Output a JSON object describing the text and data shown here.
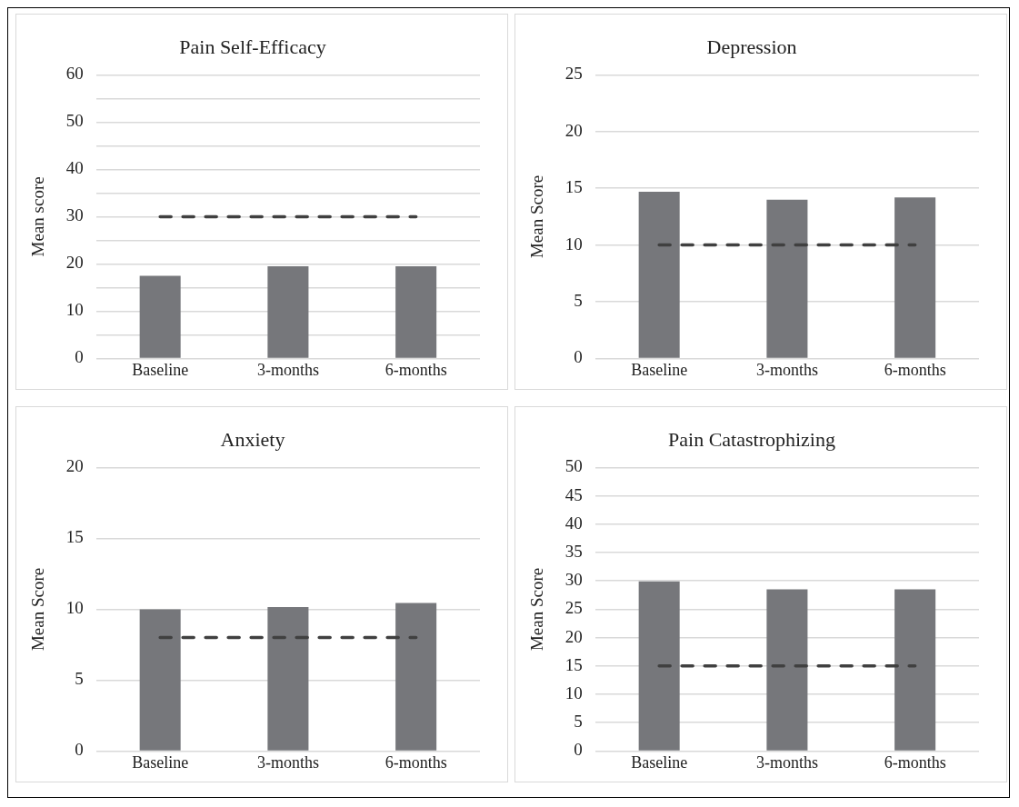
{
  "chart_data": [
    {
      "type": "bar",
      "title": "Pain Self-Efficacy",
      "ylabel": "Mean score",
      "categories": [
        "Baseline",
        "3-months",
        "6-months"
      ],
      "values": [
        17.5,
        19.5,
        19.5
      ],
      "color": "#76777b",
      "ylim": [
        0,
        60
      ],
      "yticks": [
        0,
        {
          "value": 5,
          "label": null
        },
        10,
        {
          "value": 15,
          "label": null
        },
        20,
        {
          "value": 25,
          "label": null
        },
        30,
        {
          "value": 35,
          "label": null
        },
        40,
        {
          "value": 45,
          "label": null
        },
        50,
        {
          "value": 55,
          "label": null
        },
        60
      ],
      "grid": "y",
      "legend": false,
      "ref_lines": [
        {
          "axis": "y",
          "value": 30,
          "color": "#404040",
          "line_style": "dashed"
        }
      ]
    },
    {
      "type": "bar",
      "title": "Depression",
      "ylabel": "Mean Score",
      "categories": [
        "Baseline",
        "3-months",
        "6-months"
      ],
      "values": [
        14.7,
        14.0,
        14.2
      ],
      "color": "#76777b",
      "ylim": [
        0,
        25
      ],
      "yticks": [
        0,
        5,
        10,
        15,
        20,
        25
      ],
      "grid": "y",
      "legend": false,
      "ref_lines": [
        {
          "axis": "y",
          "value": 10,
          "color": "#404040",
          "line_style": "dashed"
        }
      ]
    },
    {
      "type": "bar",
      "title": "Anxiety",
      "ylabel": "Mean Score",
      "categories": [
        "Baseline",
        "3-months",
        "6-months"
      ],
      "values": [
        10.0,
        10.15,
        10.45
      ],
      "color": "#76777b",
      "ylim": [
        0,
        20
      ],
      "yticks": [
        0,
        5,
        10,
        15,
        20
      ],
      "grid": "y",
      "legend": false,
      "ref_lines": [
        {
          "axis": "y",
          "value": 8,
          "color": "#404040",
          "line_style": "dashed"
        }
      ]
    },
    {
      "type": "bar",
      "title": "Pain Catastrophizing",
      "ylabel": "Mean Score",
      "categories": [
        "Baseline",
        "3-months",
        "6-months"
      ],
      "values": [
        29.9,
        28.5,
        28.5
      ],
      "color": "#76777b",
      "ylim": [
        0,
        50
      ],
      "yticks": [
        0,
        5,
        10,
        15,
        20,
        25,
        30,
        35,
        40,
        45,
        50
      ],
      "grid": "y",
      "legend": false,
      "ref_lines": [
        {
          "axis": "y",
          "value": 15,
          "color": "#404040",
          "line_style": "dashed"
        }
      ]
    }
  ]
}
